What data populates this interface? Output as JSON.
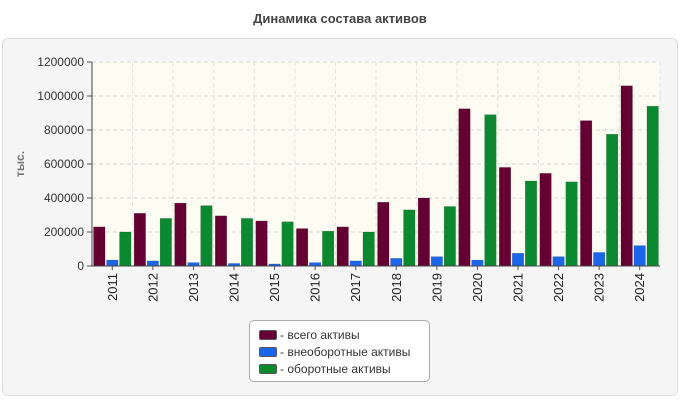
{
  "chart_data": {
    "type": "bar",
    "title": "Динамика состава активов",
    "xlabel": "",
    "ylabel": "тыс.",
    "ylim": [
      0,
      1200000
    ],
    "yticks": [
      0,
      200000,
      400000,
      600000,
      800000,
      1000000,
      1200000
    ],
    "grid": true,
    "legend_position": "bottom",
    "categories": [
      "2011",
      "2012",
      "2013",
      "2014",
      "2015",
      "2016",
      "2017",
      "2018",
      "2019",
      "2020",
      "2021",
      "2022",
      "2023",
      "2024"
    ],
    "series": [
      {
        "name": "всего активы",
        "color": "#660033",
        "values": [
          230000,
          310000,
          370000,
          295000,
          265000,
          220000,
          230000,
          375000,
          400000,
          925000,
          580000,
          545000,
          855000,
          1060000
        ]
      },
      {
        "name": "внеоборотные активы",
        "color": "#1a66ee",
        "values": [
          35000,
          30000,
          20000,
          15000,
          12000,
          20000,
          30000,
          45000,
          55000,
          35000,
          75000,
          55000,
          80000,
          120000
        ]
      },
      {
        "name": "оборотные активы",
        "color": "#0a8a2e",
        "values": [
          200000,
          280000,
          355000,
          280000,
          260000,
          205000,
          200000,
          330000,
          350000,
          890000,
          500000,
          495000,
          775000,
          940000
        ]
      }
    ]
  }
}
